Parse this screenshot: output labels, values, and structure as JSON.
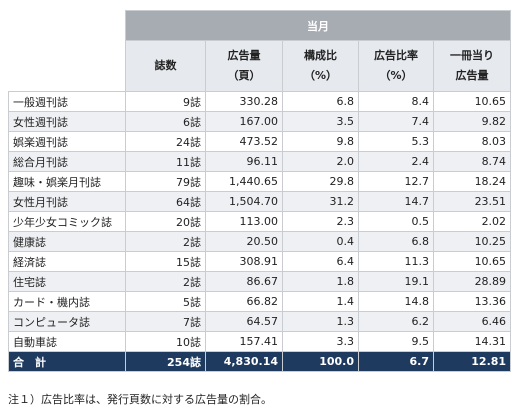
{
  "table": {
    "period": "当月",
    "columns": [
      [
        "誌数"
      ],
      [
        "広告量",
        "（頁）"
      ],
      [
        "構成比",
        "（%）"
      ],
      [
        "広告比率",
        "（%）"
      ],
      [
        "一冊当り",
        "広告量"
      ]
    ],
    "rows": [
      [
        "一般週刊誌",
        "9誌",
        "330.28",
        "6.8",
        "8.4",
        "10.65"
      ],
      [
        "女性週刊誌",
        "6誌",
        "167.00",
        "3.5",
        "7.4",
        "9.82"
      ],
      [
        "娯楽週刊誌",
        "24誌",
        "473.52",
        "9.8",
        "5.3",
        "8.03"
      ],
      [
        "総合月刊誌",
        "11誌",
        "96.11",
        "2.0",
        "2.4",
        "8.74"
      ],
      [
        "趣味・娯楽月刊誌",
        "79誌",
        "1,440.65",
        "29.8",
        "12.7",
        "18.24"
      ],
      [
        "女性月刊誌",
        "64誌",
        "1,504.70",
        "31.2",
        "14.7",
        "23.51"
      ],
      [
        "少年少女コミック誌",
        "20誌",
        "113.00",
        "2.3",
        "0.5",
        "2.02"
      ],
      [
        "健康誌",
        "2誌",
        "20.50",
        "0.4",
        "6.8",
        "10.25"
      ],
      [
        "経済誌",
        "15誌",
        "308.91",
        "6.4",
        "11.3",
        "10.65"
      ],
      [
        "住宅誌",
        "2誌",
        "86.67",
        "1.8",
        "19.1",
        "28.89"
      ],
      [
        "カード・機内誌",
        "5誌",
        "66.82",
        "1.4",
        "14.8",
        "13.36"
      ],
      [
        "コンピュータ誌",
        "7誌",
        "64.57",
        "1.3",
        "6.2",
        "6.46"
      ],
      [
        "自動車誌",
        "10誌",
        "157.41",
        "3.3",
        "9.5",
        "14.31"
      ]
    ],
    "total": [
      "合　計",
      "254誌",
      "4,830.14",
      "100.0",
      "6.7",
      "12.81"
    ]
  },
  "note": "注１）広告比率は、発行頁数に対する広告量の割合。"
}
